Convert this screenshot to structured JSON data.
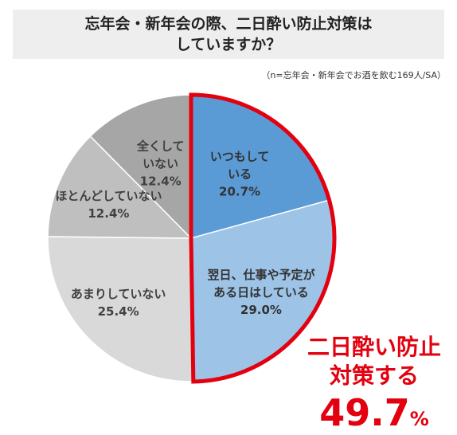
{
  "title": {
    "line1": "忘年会・新年会の際、二日酔い防止対策は",
    "line2": "していますか？"
  },
  "note": "（n=忘年会・新年会でお酒を飲む169人/SA）",
  "chart_data": {
    "type": "pie",
    "slices": [
      {
        "label_lines": [
          "いつもして",
          "いる"
        ],
        "value": 20.7,
        "value_label": "20.7%",
        "color": "#5b9bd5",
        "text_color": "#333333"
      },
      {
        "label_lines": [
          "翌日、仕事や予定が",
          "ある日はしている"
        ],
        "value": 29.0,
        "value_label": "29.0%",
        "color": "#9dc3e6",
        "text_color": "#333333"
      },
      {
        "label_lines": [
          "あまりしていない"
        ],
        "value": 25.4,
        "value_label": "25.4%",
        "color": "#d9d9d9",
        "text_color": "#404040"
      },
      {
        "label_lines": [
          "ほとんどしていない"
        ],
        "value": 12.4,
        "value_label": "12.4%",
        "color": "#bfbfbf",
        "text_color": "#404040"
      },
      {
        "label_lines": [
          "全くして",
          "いない"
        ],
        "value": 12.4,
        "value_label": "12.4%",
        "color": "#a6a6a6",
        "text_color": "#404040"
      }
    ],
    "highlight": {
      "slices": [
        0,
        1
      ],
      "color": "#e3000f",
      "label_lines": [
        "二日酔い防止",
        "対策する"
      ],
      "value": "49.7",
      "unit": "%"
    }
  }
}
